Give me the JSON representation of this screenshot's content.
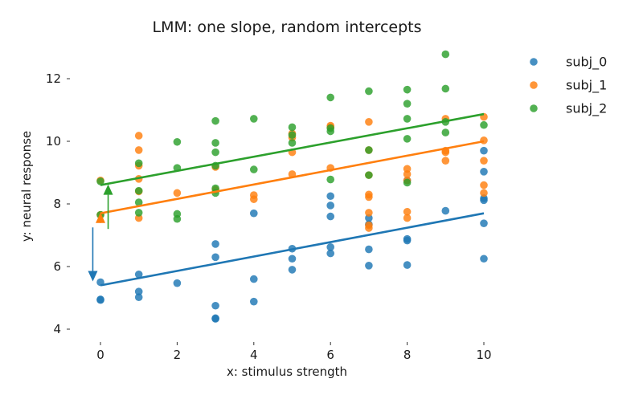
{
  "chart_data": {
    "type": "scatter",
    "title": "LMM: one slope, random intercepts",
    "xlabel": "x: stimulus strength",
    "ylabel": "y: neural response",
    "xlim": [
      -0.5,
      10.5
    ],
    "ylim": [
      4,
      12.6
    ],
    "xticks": [
      0,
      2,
      4,
      6,
      8,
      10
    ],
    "yticks": [
      4,
      6,
      8,
      10,
      12
    ],
    "grid": false,
    "legend_position": "upper-right-outside",
    "series": [
      {
        "name": "subj_0",
        "color": "#1f77b4",
        "line": {
          "intercept": 5.4,
          "slope": 0.23
        },
        "arrow": {
          "x": -0.2,
          "from": 7.25,
          "to": 5.55
        },
        "points": [
          [
            0,
            5.5
          ],
          [
            0,
            4.95
          ],
          [
            0,
            4.93
          ],
          [
            1,
            5.75
          ],
          [
            1,
            5.2
          ],
          [
            1,
            5.02
          ],
          [
            2,
            5.47
          ],
          [
            3,
            6.72
          ],
          [
            3,
            6.3
          ],
          [
            3,
            4.75
          ],
          [
            3,
            4.35
          ],
          [
            3,
            4.33
          ],
          [
            4,
            7.7
          ],
          [
            4,
            5.6
          ],
          [
            4,
            4.88
          ],
          [
            5,
            6.57
          ],
          [
            5,
            6.25
          ],
          [
            5,
            5.9
          ],
          [
            6,
            8.25
          ],
          [
            6,
            7.95
          ],
          [
            6,
            7.6
          ],
          [
            6,
            6.62
          ],
          [
            6,
            6.42
          ],
          [
            7,
            7.55
          ],
          [
            7,
            7.35
          ],
          [
            7,
            6.55
          ],
          [
            7,
            6.03
          ],
          [
            8,
            8.75
          ],
          [
            8,
            6.88
          ],
          [
            8,
            6.83
          ],
          [
            8,
            6.05
          ],
          [
            9,
            7.78
          ],
          [
            10,
            9.7
          ],
          [
            10,
            9.03
          ],
          [
            10,
            8.18
          ],
          [
            10,
            8.12
          ],
          [
            10,
            7.38
          ],
          [
            10,
            6.25
          ]
        ]
      },
      {
        "name": "subj_1",
        "color": "#ff7f0e",
        "line": {
          "intercept": 7.7,
          "slope": 0.23
        },
        "arrow": {
          "x": 0.0,
          "from": 7.4,
          "to": 7.7
        },
        "points": [
          [
            0,
            8.75
          ],
          [
            0,
            7.65
          ],
          [
            1,
            10.18
          ],
          [
            1,
            9.72
          ],
          [
            1,
            9.22
          ],
          [
            1,
            8.8
          ],
          [
            1,
            8.4
          ],
          [
            1,
            7.55
          ],
          [
            2,
            8.35
          ],
          [
            3,
            9.18
          ],
          [
            3,
            8.45
          ],
          [
            4,
            8.28
          ],
          [
            4,
            8.15
          ],
          [
            5,
            10.25
          ],
          [
            5,
            10.12
          ],
          [
            5,
            9.65
          ],
          [
            5,
            8.95
          ],
          [
            6,
            10.5
          ],
          [
            6,
            10.45
          ],
          [
            6,
            9.15
          ],
          [
            7,
            10.62
          ],
          [
            7,
            9.72
          ],
          [
            7,
            8.92
          ],
          [
            7,
            8.3
          ],
          [
            7,
            8.22
          ],
          [
            7,
            7.72
          ],
          [
            7,
            7.32
          ],
          [
            7,
            7.23
          ],
          [
            8,
            9.12
          ],
          [
            8,
            8.95
          ],
          [
            8,
            8.75
          ],
          [
            8,
            7.75
          ],
          [
            8,
            7.55
          ],
          [
            9,
            10.72
          ],
          [
            9,
            9.7
          ],
          [
            9,
            9.65
          ],
          [
            9,
            9.38
          ],
          [
            10,
            10.78
          ],
          [
            10,
            10.03
          ],
          [
            10,
            9.38
          ],
          [
            10,
            8.6
          ],
          [
            10,
            8.35
          ]
        ]
      },
      {
        "name": "subj_2",
        "color": "#2ca02c",
        "line": {
          "intercept": 8.6,
          "slope": 0.227
        },
        "arrow": {
          "x": 0.2,
          "from": 7.2,
          "to": 8.6
        },
        "points": [
          [
            0,
            8.72
          ],
          [
            0,
            7.65
          ],
          [
            1,
            9.3
          ],
          [
            1,
            8.42
          ],
          [
            1,
            8.05
          ],
          [
            1,
            7.72
          ],
          [
            2,
            9.98
          ],
          [
            2,
            9.15
          ],
          [
            2,
            7.68
          ],
          [
            2,
            7.52
          ],
          [
            3,
            10.65
          ],
          [
            3,
            9.95
          ],
          [
            3,
            9.65
          ],
          [
            3,
            9.22
          ],
          [
            3,
            8.5
          ],
          [
            3,
            8.35
          ],
          [
            4,
            10.72
          ],
          [
            4,
            9.1
          ],
          [
            5,
            10.45
          ],
          [
            5,
            10.2
          ],
          [
            5,
            9.95
          ],
          [
            6,
            11.4
          ],
          [
            6,
            10.42
          ],
          [
            6,
            10.32
          ],
          [
            6,
            8.78
          ],
          [
            7,
            11.6
          ],
          [
            7,
            9.72
          ],
          [
            7,
            8.92
          ],
          [
            8,
            11.65
          ],
          [
            8,
            11.2
          ],
          [
            8,
            10.72
          ],
          [
            8,
            10.08
          ],
          [
            8,
            8.68
          ],
          [
            9,
            12.78
          ],
          [
            9,
            11.68
          ],
          [
            9,
            10.62
          ],
          [
            9,
            10.28
          ],
          [
            10,
            10.52
          ]
        ]
      }
    ]
  }
}
